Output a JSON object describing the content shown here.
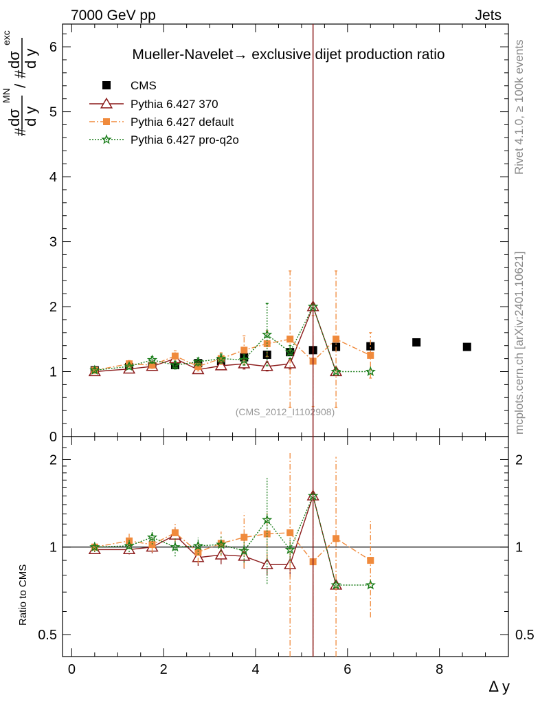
{
  "header": {
    "left": "7000 GeV pp",
    "right": "Jets"
  },
  "side_text": {
    "top": "Rivet 4.1.0, ≥ 100k events",
    "bottom": "mcplots.cern.ch [arXiv:2401.10621]"
  },
  "chart_data": {
    "type": "scatter",
    "title": "Mueller-Navelet→ exclusive dijet production ratio",
    "analysis_label": "(CMS_2012_I1102908)",
    "xlabel": "Δ y",
    "ylabel_num": "dσ",
    "ylabel_num_sup": "MN",
    "ylabel_den": "dσ",
    "ylabel_den_sup": "exc",
    "ylabel_dy": "d y",
    "ylabel_hash": "#",
    "ratio_ylabel": "Ratio to CMS",
    "xlim": [
      -0.2,
      9.5
    ],
    "ylim": [
      0,
      6.35
    ],
    "ratio_ylim": [
      0.42,
      2.4
    ],
    "xticks": [
      0,
      2,
      4,
      6,
      8
    ],
    "xtick_labels": [
      "0",
      "2",
      "4",
      "6",
      "8"
    ],
    "yticks": [
      0,
      1,
      2,
      3,
      4,
      5,
      6
    ],
    "ytick_labels": [
      "0",
      "1",
      "2",
      "3",
      "4",
      "5",
      "6"
    ],
    "ratio_yticks": [
      0.5,
      1,
      2
    ],
    "ratio_ytick_labels": [
      "0.5",
      "1",
      "2"
    ],
    "vline_x": 5.25,
    "series": [
      {
        "name": "CMS",
        "kind": "data",
        "color": "#000000",
        "x": [
          0.5,
          1.25,
          1.75,
          2.25,
          2.75,
          3.25,
          3.75,
          4.25,
          4.75,
          5.25,
          5.75,
          6.5,
          7.5,
          8.6
        ],
        "y": [
          1.02,
          1.07,
          1.08,
          1.1,
          1.13,
          1.16,
          1.22,
          1.26,
          1.3,
          1.33,
          1.38,
          1.39,
          1.45,
          1.38
        ]
      },
      {
        "name": "Pythia 6.427 370",
        "kind": "mc",
        "marker": "triangle",
        "color": "#8b1a1a",
        "dash": "",
        "x": [
          0.5,
          1.25,
          1.75,
          2.25,
          2.75,
          3.25,
          3.75,
          4.25,
          4.75,
          5.25,
          5.75
        ],
        "y": [
          1.0,
          1.04,
          1.08,
          1.2,
          1.03,
          1.09,
          1.12,
          1.08,
          1.12,
          2.0,
          1.0
        ],
        "err": [
          0.02,
          0.03,
          0.04,
          0.06,
          0.05,
          0.06,
          0.08,
          0.07,
          0.08,
          0.0,
          0.0
        ],
        "ratio": [
          0.98,
          0.98,
          1.0,
          1.1,
          0.92,
          0.94,
          0.93,
          0.87,
          0.87,
          1.5,
          0.74
        ]
      },
      {
        "name": "Pythia 6.427 default",
        "kind": "mc",
        "marker": "square",
        "color": "#f08a3c",
        "dash": "8,3,2,3",
        "x": [
          0.5,
          1.25,
          1.75,
          2.25,
          2.75,
          3.25,
          3.75,
          4.25,
          4.75,
          5.25,
          5.75,
          6.5
        ],
        "y": [
          1.02,
          1.12,
          1.1,
          1.24,
          1.08,
          1.2,
          1.33,
          1.43,
          1.5,
          1.16,
          1.5,
          1.25
        ],
        "err": [
          0.03,
          0.05,
          0.05,
          0.08,
          0.07,
          0.09,
          0.22,
          0.2,
          1.05,
          0.7,
          1.05,
          0.35
        ],
        "ratio": [
          1.0,
          1.05,
          1.02,
          1.12,
          0.96,
          1.03,
          1.08,
          1.11,
          1.12,
          0.89,
          1.07,
          0.9
        ]
      },
      {
        "name": "Pythia 6.427 pro-q2o",
        "kind": "mc",
        "marker": "star",
        "color": "#1a7d1a",
        "dash": "2,2",
        "x": [
          0.5,
          1.25,
          1.75,
          2.25,
          2.75,
          3.25,
          3.75,
          4.25,
          4.75,
          5.25,
          5.75,
          6.5
        ],
        "y": [
          1.02,
          1.08,
          1.18,
          1.1,
          1.15,
          1.2,
          1.18,
          1.57,
          1.3,
          2.0,
          1.0,
          1.0
        ],
        "err": [
          0.03,
          0.04,
          0.05,
          0.06,
          0.06,
          0.07,
          0.08,
          0.48,
          0.1,
          0.0,
          0.0,
          0.0
        ],
        "ratio": [
          1.0,
          1.01,
          1.08,
          1.0,
          1.01,
          1.02,
          0.97,
          1.24,
          0.98,
          1.5,
          0.74,
          0.74
        ]
      }
    ]
  }
}
